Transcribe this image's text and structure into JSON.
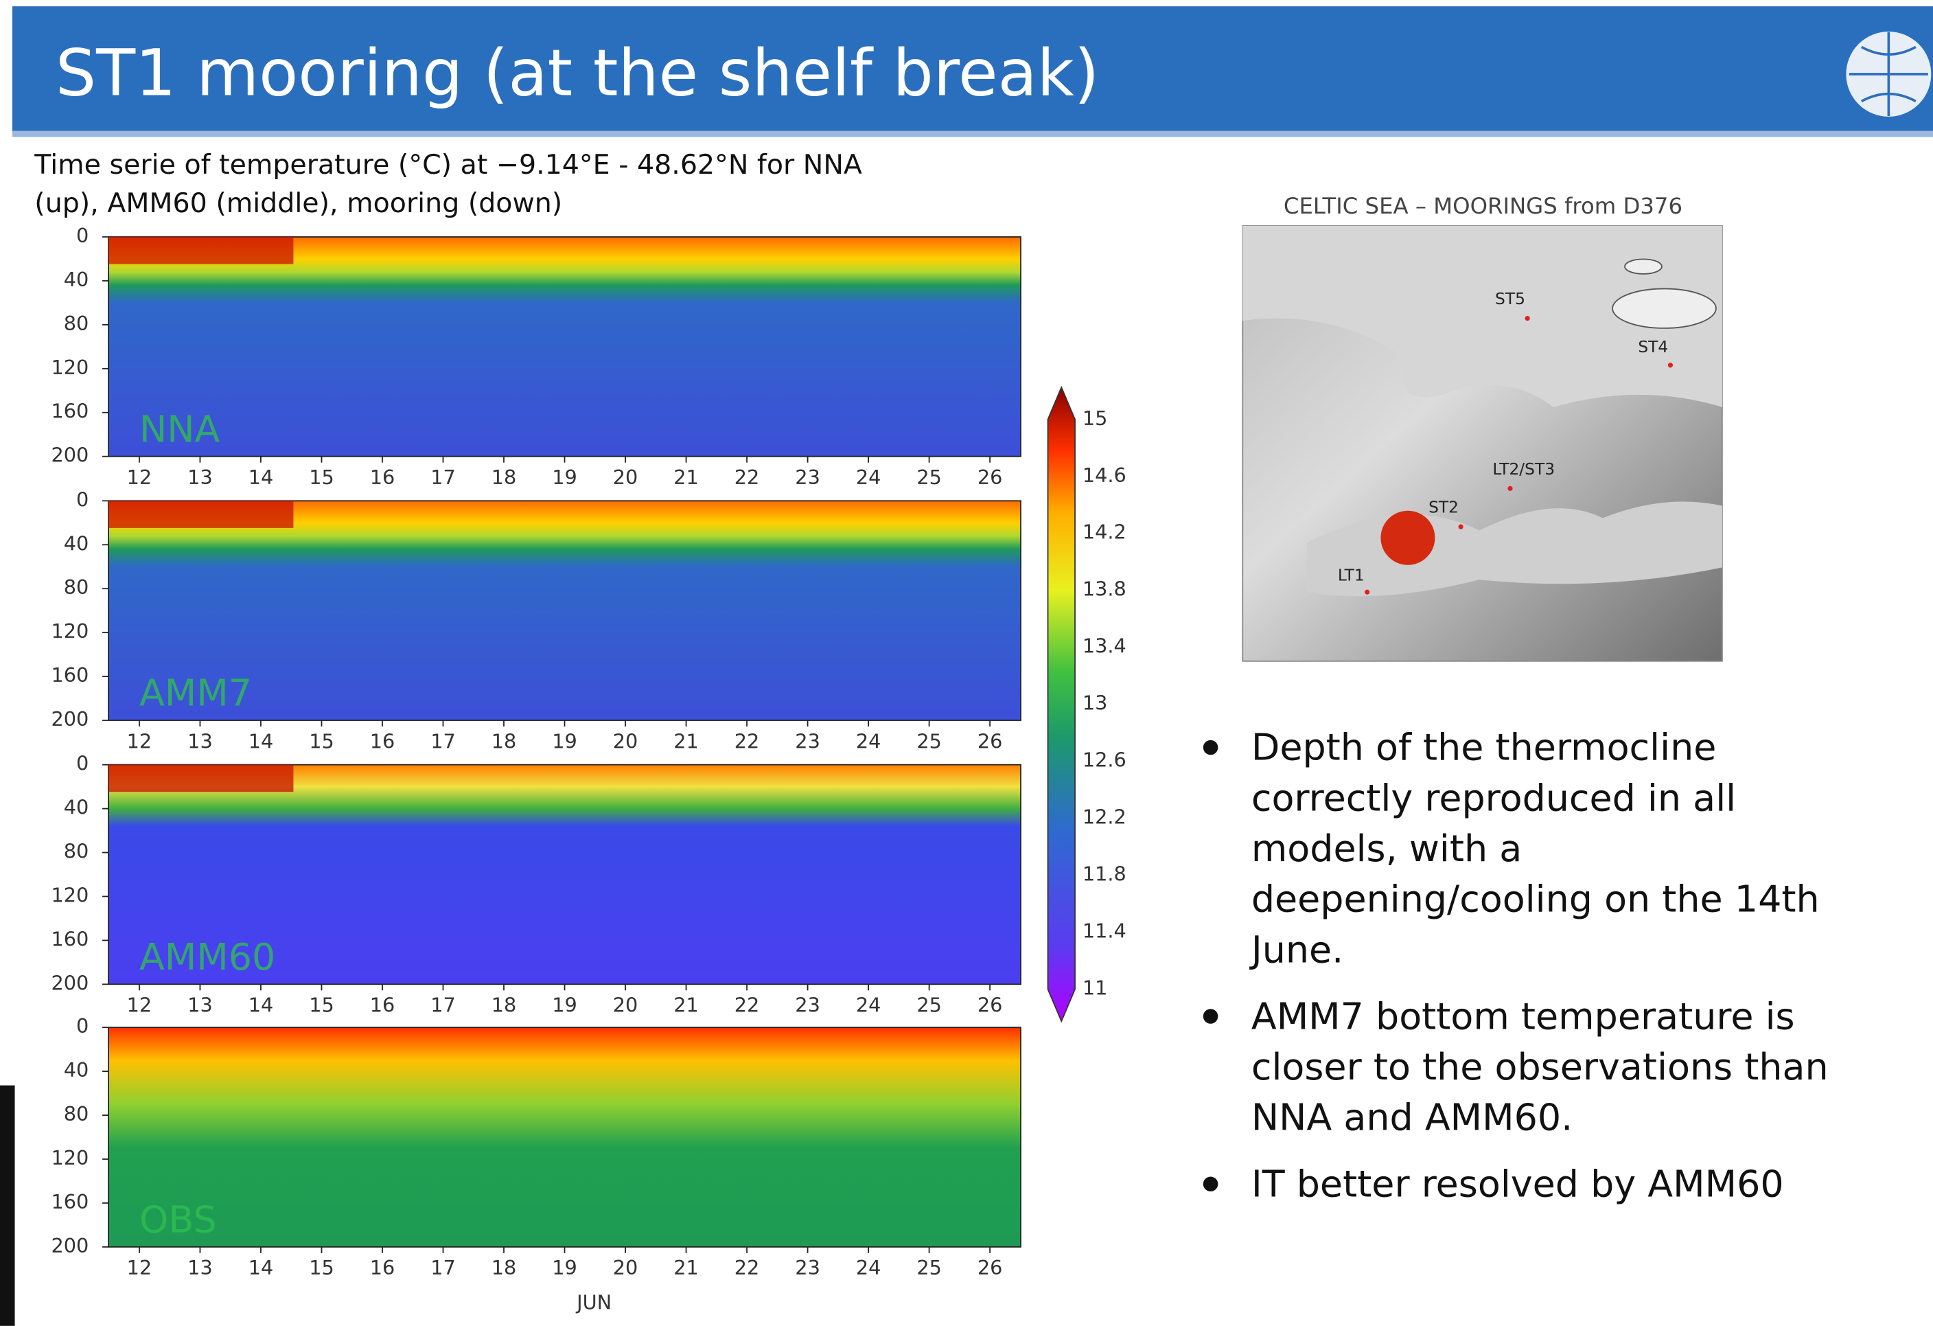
{
  "header": {
    "title": "ST1 mooring (at the shelf break)"
  },
  "figure": {
    "caption_lines": [
      "Time serie of temperature (°C) at −9.14°E - 48.62°N for NNA",
      "(up), AMM60 (middle), mooring (down)"
    ],
    "panels": [
      {
        "label": "NNA"
      },
      {
        "label": "AMM7"
      },
      {
        "label": "AMM60"
      },
      {
        "label": "OBS"
      }
    ],
    "depth_ticks": [
      0,
      40,
      80,
      120,
      160,
      200
    ],
    "day_ticks": [
      12,
      13,
      14,
      15,
      16,
      17,
      18,
      19,
      20,
      21,
      22,
      23,
      24,
      25,
      26
    ],
    "month": "JUN",
    "colorbar_ticks": [
      15,
      14.6,
      14.2,
      13.8,
      13.4,
      13,
      12.6,
      12.2,
      11.8,
      11.4,
      11
    ]
  },
  "map": {
    "title": "CELTIC SEA – MOORINGS from D376",
    "stations": [
      {
        "label": "ST5"
      },
      {
        "label": "ST4"
      },
      {
        "label": "LT2/ST3"
      },
      {
        "label": "ST2"
      },
      {
        "label": "LT1"
      }
    ]
  },
  "bullets": [
    {
      "lines": [
        "Depth of the thermocline",
        "correctly reproduced in all",
        "models, with a",
        "deepening/cooling on the 14th",
        "June."
      ]
    },
    {
      "lines": [
        "AMM7 bottom temperature is",
        "closer to the observations than",
        "NNA and AMM60."
      ]
    },
    {
      "lines": [
        "IT better resolved by AMM60"
      ]
    }
  ]
}
